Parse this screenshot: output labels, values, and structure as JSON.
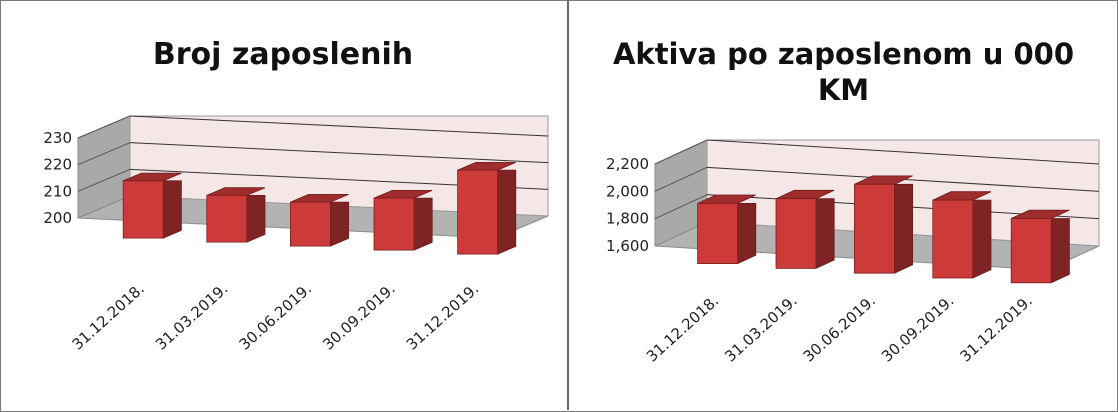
{
  "chart_data": [
    {
      "type": "bar",
      "title": "Broj zaposlenih",
      "categories": [
        "31.12.2018.",
        "31.03.2019.",
        "30.06.2019.",
        "30.09.2019.",
        "31.12.2019."
      ],
      "values": [
        211,
        207,
        206,
        209,
        221
      ],
      "yticks": [
        "200",
        "210",
        "220",
        "230"
      ],
      "ylim": [
        200,
        230
      ],
      "style": "3d-column",
      "bar_color": "#cc3a3a",
      "grid": true,
      "legend": "none"
    },
    {
      "type": "bar",
      "title": "Aktiva po zaposlenom u 000 KM",
      "categories": [
        "31.12.2018.",
        "31.03.2019.",
        "30.06.2019.",
        "30.09.2019.",
        "31.12.2019."
      ],
      "values": [
        1850,
        1920,
        2060,
        1980,
        1880
      ],
      "yticks": [
        "1,600",
        "1,800",
        "2,000",
        "2,200"
      ],
      "ylim": [
        1600,
        2200
      ],
      "style": "3d-column",
      "bar_color": "#cc3a3a",
      "grid": true,
      "legend": "none"
    }
  ]
}
